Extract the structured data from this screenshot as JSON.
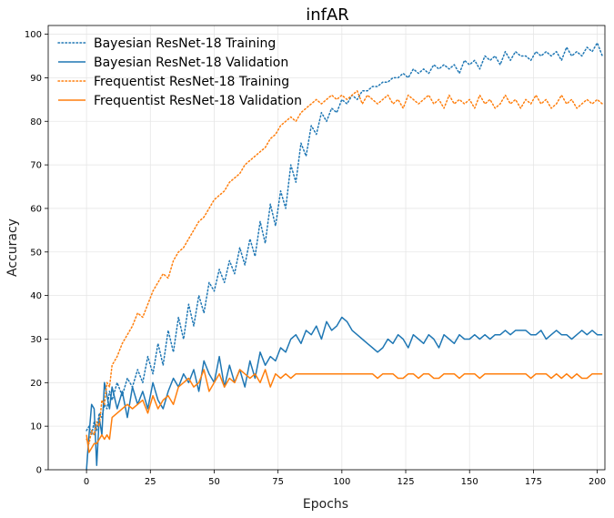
{
  "chart_data": {
    "type": "line",
    "title": "infAR",
    "xlabel": "Epochs",
    "ylabel": "Accuracy",
    "xlim": [
      -15,
      203
    ],
    "ylim": [
      0,
      102
    ],
    "xticks": [
      0,
      25,
      50,
      75,
      100,
      125,
      150,
      175,
      200
    ],
    "yticks": [
      0,
      10,
      20,
      30,
      40,
      50,
      60,
      70,
      80,
      90,
      100
    ],
    "grid": true,
    "legend_position": "top-left",
    "series": [
      {
        "name": "Bayesian ResNet-18 Training",
        "color": "#1f77b4",
        "style": "dotted",
        "x": [
          0,
          1,
          2,
          3,
          4,
          5,
          6,
          7,
          8,
          9,
          10,
          12,
          14,
          16,
          18,
          20,
          22,
          24,
          26,
          28,
          30,
          32,
          34,
          36,
          38,
          40,
          42,
          44,
          46,
          48,
          50,
          52,
          54,
          56,
          58,
          60,
          62,
          64,
          66,
          68,
          70,
          72,
          74,
          76,
          78,
          80,
          82,
          84,
          86,
          88,
          90,
          92,
          94,
          96,
          98,
          100,
          102,
          104,
          106,
          108,
          110,
          112,
          114,
          116,
          118,
          120,
          122,
          124,
          126,
          128,
          130,
          132,
          134,
          136,
          138,
          140,
          142,
          144,
          146,
          148,
          150,
          152,
          154,
          156,
          158,
          160,
          162,
          164,
          166,
          168,
          170,
          172,
          174,
          176,
          178,
          180,
          182,
          184,
          186,
          188,
          190,
          192,
          194,
          196,
          198,
          200,
          202
        ],
        "y": [
          9,
          10,
          8,
          11,
          9,
          13,
          12,
          15,
          14,
          18,
          16,
          20,
          17,
          21,
          19,
          23,
          20,
          26,
          22,
          29,
          24,
          32,
          27,
          35,
          30,
          38,
          33,
          40,
          36,
          43,
          41,
          46,
          43,
          48,
          45,
          51,
          47,
          53,
          49,
          57,
          52,
          61,
          56,
          64,
          60,
          70,
          66,
          75,
          72,
          79,
          77,
          82,
          80,
          83,
          82,
          85,
          84,
          86,
          85,
          87,
          87,
          88,
          88,
          89,
          89,
          90,
          90,
          91,
          90,
          92,
          91,
          92,
          91,
          93,
          92,
          93,
          92,
          93,
          91,
          94,
          93,
          94,
          92,
          95,
          94,
          95,
          93,
          96,
          94,
          96,
          95,
          95,
          94,
          96,
          95,
          96,
          95,
          96,
          94,
          97,
          95,
          96,
          95,
          97,
          96,
          98,
          95
        ]
      },
      {
        "name": "Bayesian ResNet-18 Validation",
        "color": "#1f77b4",
        "style": "solid",
        "x": [
          0,
          1,
          2,
          3,
          4,
          5,
          6,
          7,
          8,
          9,
          10,
          12,
          14,
          16,
          18,
          20,
          22,
          24,
          26,
          28,
          30,
          32,
          34,
          36,
          38,
          40,
          42,
          44,
          46,
          48,
          50,
          52,
          54,
          56,
          58,
          60,
          62,
          64,
          66,
          68,
          70,
          72,
          74,
          76,
          78,
          80,
          82,
          84,
          86,
          88,
          90,
          92,
          94,
          96,
          98,
          100,
          102,
          104,
          106,
          108,
          110,
          112,
          114,
          116,
          118,
          120,
          122,
          124,
          126,
          128,
          130,
          132,
          134,
          136,
          138,
          140,
          142,
          144,
          146,
          148,
          150,
          152,
          154,
          156,
          158,
          160,
          162,
          164,
          166,
          168,
          170,
          172,
          174,
          176,
          178,
          180,
          182,
          184,
          186,
          188,
          190,
          192,
          194,
          196,
          198,
          200,
          202
        ],
        "y": [
          0,
          8,
          15,
          14,
          1,
          12,
          8,
          20,
          17,
          14,
          19,
          14,
          18,
          12,
          19,
          15,
          18,
          14,
          20,
          16,
          14,
          18,
          21,
          19,
          22,
          20,
          23,
          18,
          25,
          22,
          20,
          26,
          19,
          24,
          20,
          23,
          19,
          25,
          21,
          27,
          24,
          26,
          25,
          28,
          27,
          30,
          31,
          29,
          32,
          31,
          33,
          30,
          34,
          32,
          33,
          35,
          34,
          32,
          31,
          30,
          29,
          28,
          27,
          28,
          30,
          29,
          31,
          30,
          28,
          31,
          30,
          29,
          31,
          30,
          28,
          31,
          30,
          29,
          31,
          30,
          30,
          31,
          30,
          31,
          30,
          31,
          31,
          32,
          31,
          32,
          32,
          32,
          31,
          31,
          32,
          30,
          31,
          32,
          31,
          31,
          30,
          31,
          32,
          31,
          32,
          31,
          31
        ]
      },
      {
        "name": "Frequentist ResNet-18 Training",
        "color": "#ff7f0e",
        "style": "dotted",
        "x": [
          0,
          1,
          2,
          3,
          4,
          5,
          6,
          7,
          8,
          9,
          10,
          12,
          14,
          16,
          18,
          20,
          22,
          24,
          26,
          28,
          30,
          32,
          34,
          36,
          38,
          40,
          42,
          44,
          46,
          48,
          50,
          52,
          54,
          56,
          58,
          60,
          62,
          64,
          66,
          68,
          70,
          72,
          74,
          76,
          78,
          80,
          82,
          84,
          86,
          88,
          90,
          92,
          94,
          96,
          98,
          100,
          102,
          104,
          106,
          108,
          110,
          112,
          114,
          116,
          118,
          120,
          122,
          124,
          126,
          128,
          130,
          132,
          134,
          136,
          138,
          140,
          142,
          144,
          146,
          148,
          150,
          152,
          154,
          156,
          158,
          160,
          162,
          164,
          166,
          168,
          170,
          172,
          174,
          176,
          178,
          180,
          182,
          184,
          186,
          188,
          190,
          192,
          194,
          196,
          198,
          200,
          202
        ],
        "y": [
          7,
          6,
          9,
          8,
          11,
          10,
          16,
          15,
          20,
          19,
          24,
          26,
          29,
          31,
          33,
          36,
          35,
          38,
          41,
          43,
          45,
          44,
          48,
          50,
          51,
          53,
          55,
          57,
          58,
          60,
          62,
          63,
          64,
          66,
          67,
          68,
          70,
          71,
          72,
          73,
          74,
          76,
          77,
          79,
          80,
          81,
          80,
          82,
          83,
          84,
          85,
          84,
          85,
          86,
          85,
          86,
          85,
          86,
          87,
          84,
          86,
          85,
          84,
          85,
          86,
          84,
          85,
          83,
          86,
          85,
          84,
          85,
          86,
          84,
          85,
          83,
          86,
          84,
          85,
          84,
          85,
          83,
          86,
          84,
          85,
          83,
          84,
          86,
          84,
          85,
          83,
          85,
          84,
          86,
          84,
          85,
          83,
          84,
          86,
          84,
          85,
          83,
          84,
          85,
          84,
          85,
          84
        ]
      },
      {
        "name": "Frequentist ResNet-18 Validation",
        "color": "#ff7f0e",
        "style": "solid",
        "x": [
          0,
          1,
          2,
          3,
          4,
          5,
          6,
          7,
          8,
          9,
          10,
          12,
          14,
          16,
          18,
          20,
          22,
          24,
          26,
          28,
          30,
          32,
          34,
          36,
          38,
          40,
          42,
          44,
          46,
          48,
          50,
          52,
          54,
          56,
          58,
          60,
          62,
          64,
          66,
          68,
          70,
          72,
          74,
          76,
          78,
          80,
          82,
          84,
          86,
          88,
          90,
          92,
          94,
          96,
          98,
          100,
          102,
          104,
          106,
          108,
          110,
          112,
          114,
          116,
          118,
          120,
          122,
          124,
          126,
          128,
          130,
          132,
          134,
          136,
          138,
          140,
          142,
          144,
          146,
          148,
          150,
          152,
          154,
          156,
          158,
          160,
          162,
          164,
          166,
          168,
          170,
          172,
          174,
          176,
          178,
          180,
          182,
          184,
          186,
          188,
          190,
          192,
          194,
          196,
          198,
          200,
          202
        ],
        "y": [
          8,
          4,
          5,
          6,
          6,
          7,
          8,
          7,
          8,
          7,
          12,
          13,
          14,
          15,
          14,
          15,
          16,
          13,
          17,
          14,
          16,
          17,
          15,
          19,
          20,
          21,
          19,
          20,
          23,
          18,
          20,
          22,
          19,
          21,
          20,
          23,
          22,
          21,
          22,
          20,
          23,
          19,
          22,
          21,
          22,
          21,
          22,
          22,
          22,
          22,
          22,
          22,
          22,
          22,
          22,
          22,
          22,
          22,
          22,
          22,
          22,
          22,
          21,
          22,
          22,
          22,
          21,
          21,
          22,
          22,
          21,
          22,
          22,
          21,
          21,
          22,
          22,
          22,
          21,
          22,
          22,
          22,
          21,
          22,
          22,
          22,
          22,
          22,
          22,
          22,
          22,
          22,
          21,
          22,
          22,
          22,
          21,
          22,
          21,
          22,
          21,
          22,
          21,
          21,
          22,
          22,
          22
        ]
      }
    ]
  }
}
